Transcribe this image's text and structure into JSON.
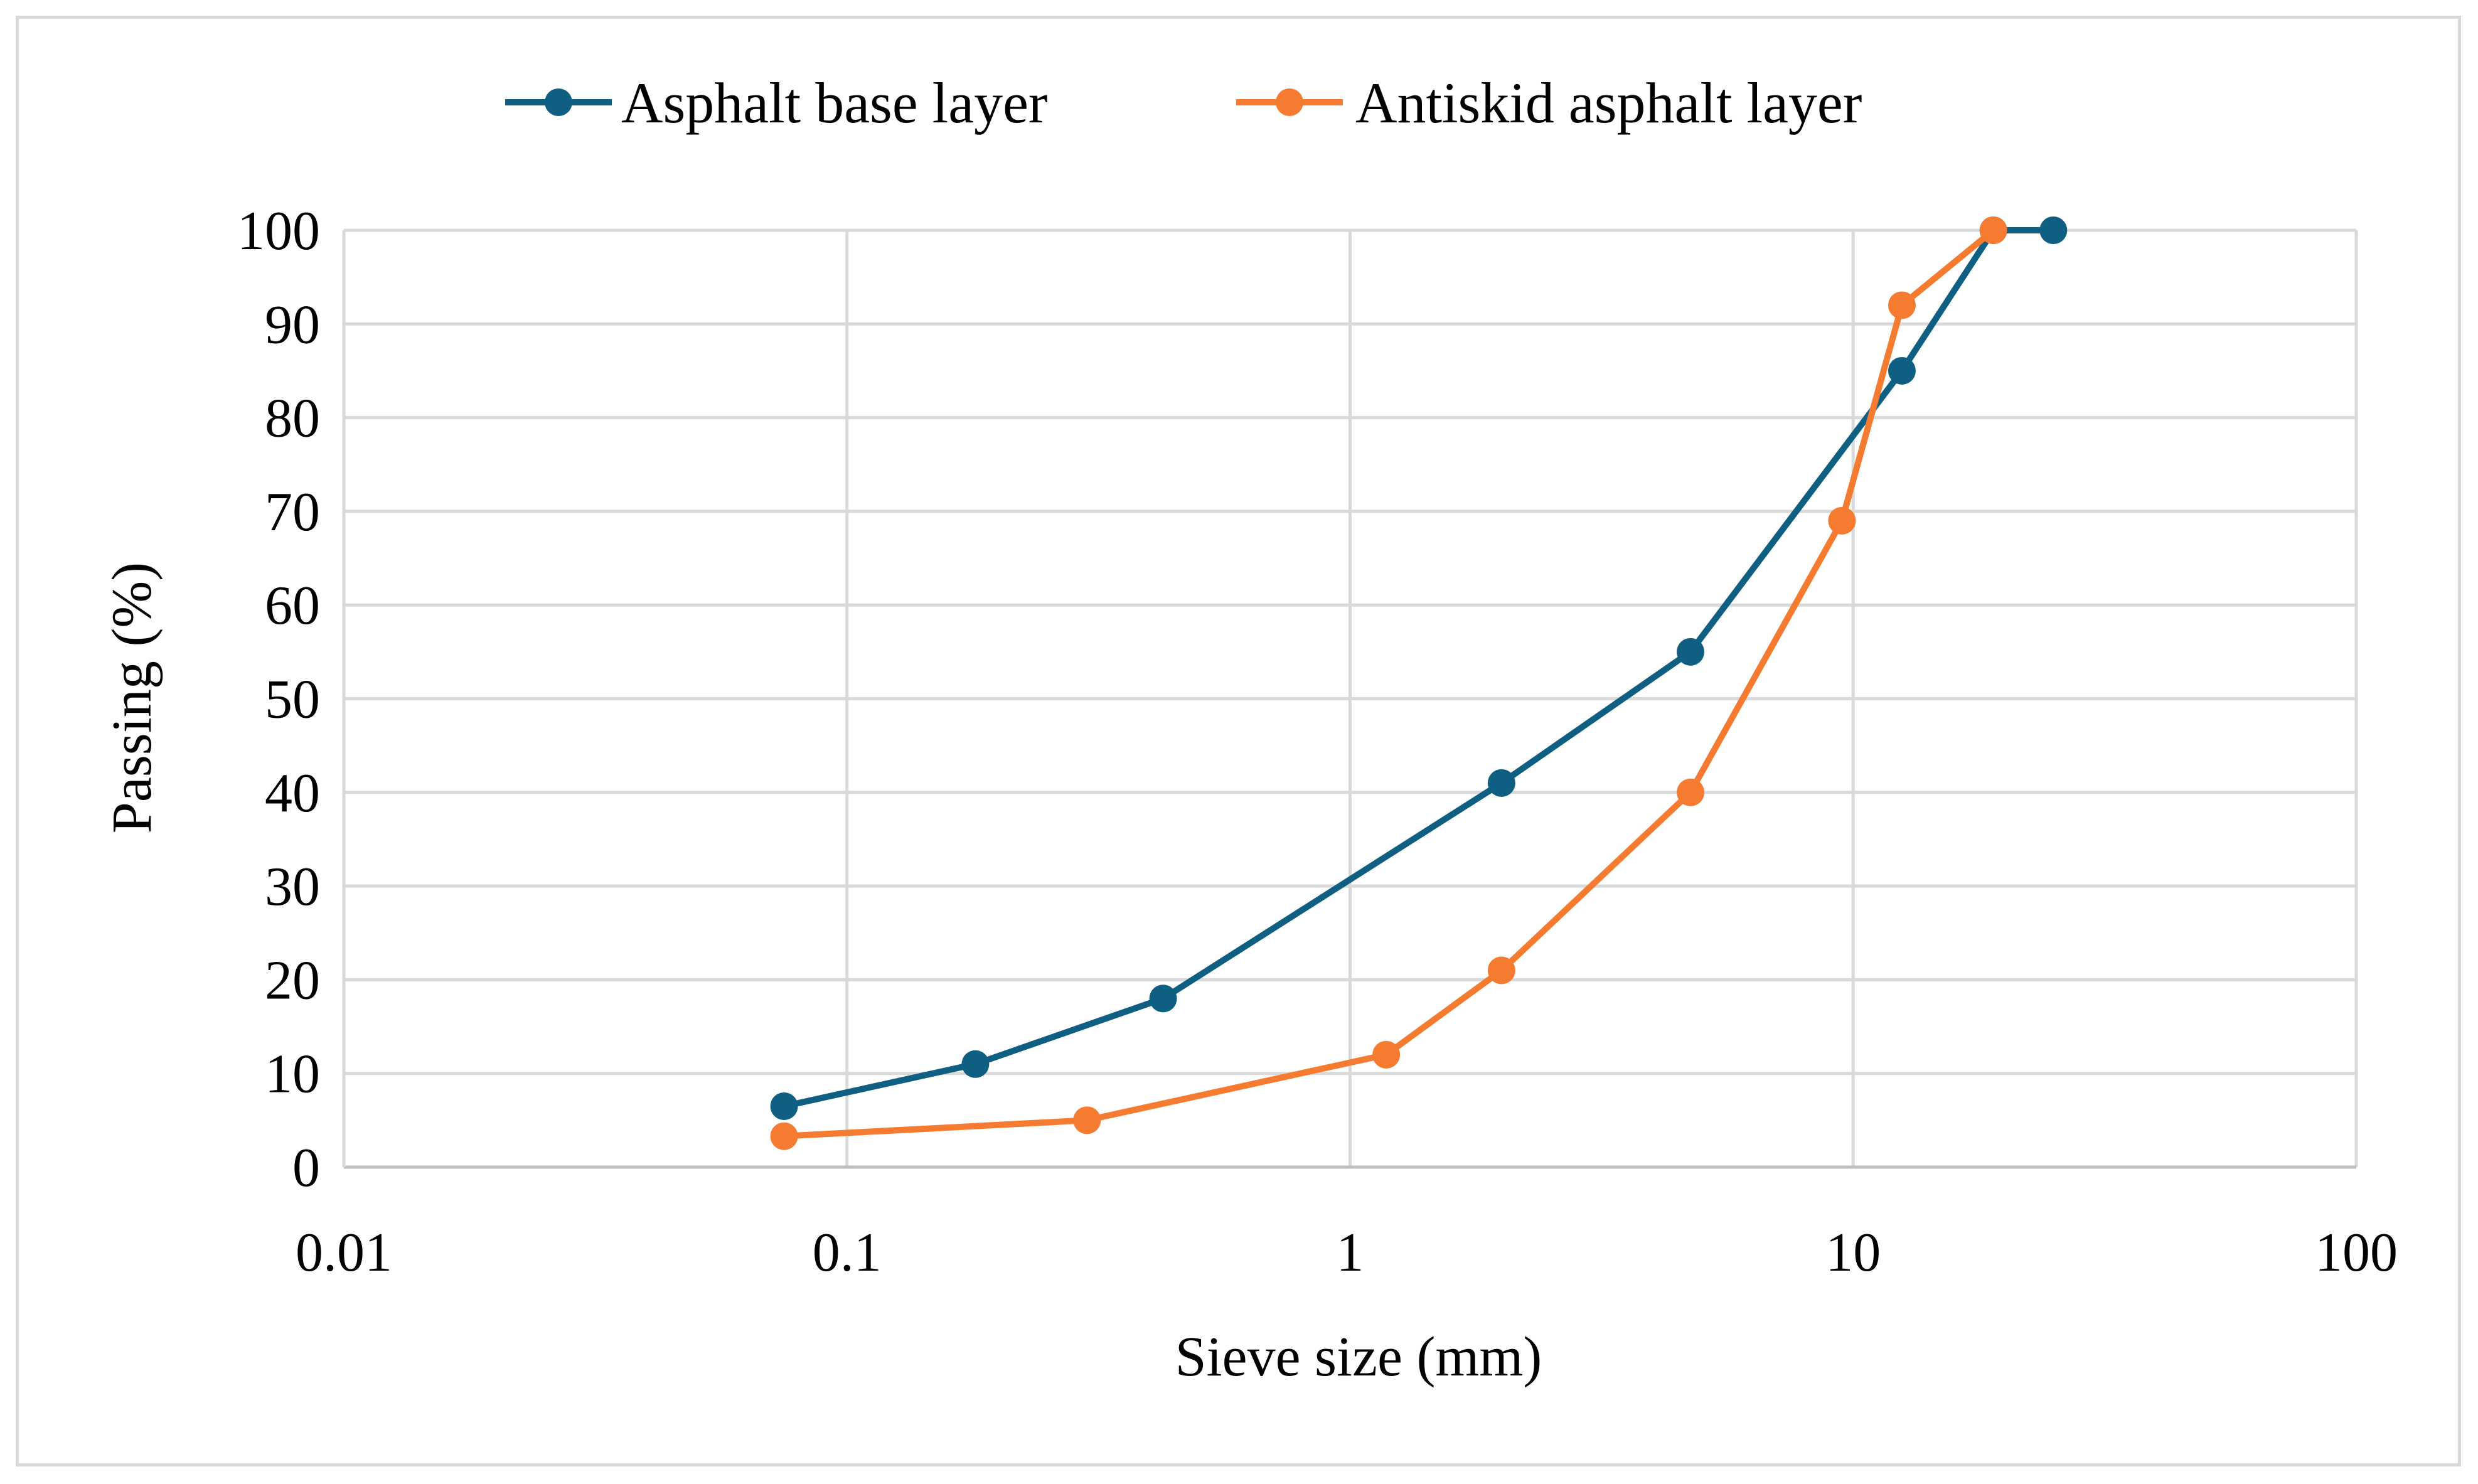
{
  "chart_data": {
    "type": "line",
    "xscale": "log",
    "xlabel": "Sieve size (mm)",
    "ylabel": "Passing (%)",
    "xlim": [
      0.01,
      100
    ],
    "ylim": [
      0,
      100
    ],
    "x_ticks": [
      "0.01",
      "0.1",
      "1",
      "10",
      "100"
    ],
    "y_ticks": [
      "0",
      "10",
      "20",
      "30",
      "40",
      "50",
      "60",
      "70",
      "80",
      "90",
      "100"
    ],
    "grid": true,
    "legend_position": "top",
    "series": [
      {
        "name": "Asphalt base layer",
        "color": "#0f5f82",
        "x": [
          0.075,
          0.18,
          0.425,
          2.0,
          4.75,
          12.5,
          19.0,
          25.0
        ],
        "y": [
          6.5,
          11,
          18,
          41,
          55,
          85,
          100,
          100
        ]
      },
      {
        "name": "Antiskid asphalt layer",
        "color": "#f47b30",
        "x": [
          0.075,
          0.3,
          1.18,
          2.0,
          4.75,
          9.5,
          12.5,
          19.0
        ],
        "y": [
          3.3,
          5,
          12,
          21,
          40,
          69,
          92,
          100
        ]
      }
    ]
  }
}
